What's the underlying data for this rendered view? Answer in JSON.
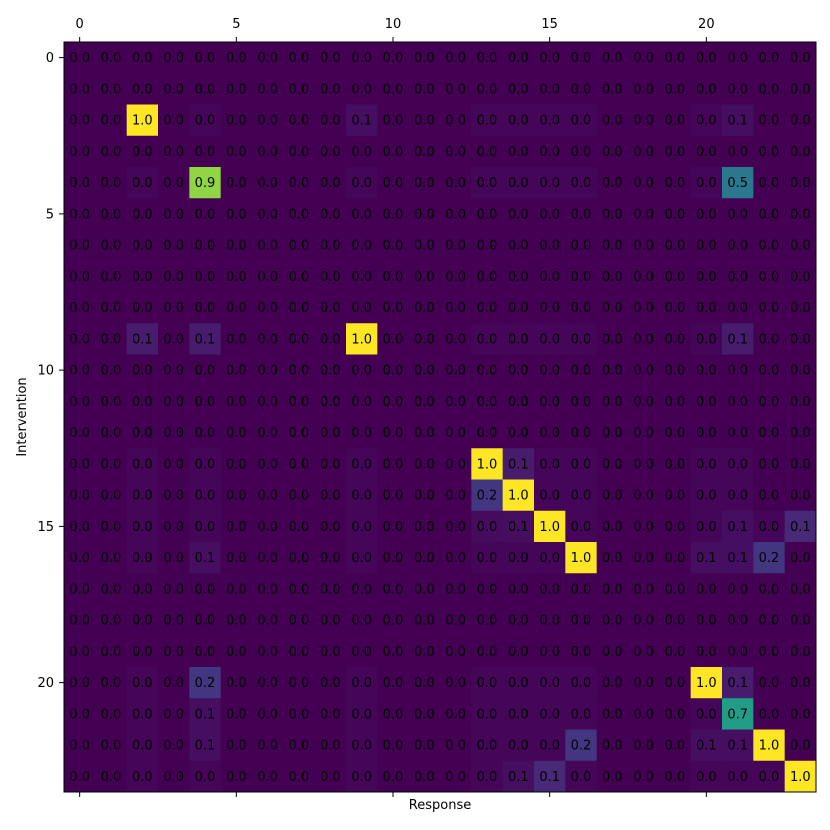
{
  "chart_data": {
    "type": "heatmap",
    "title": "",
    "xlabel": "Response",
    "ylabel": "Intervention",
    "rows": 24,
    "cols": 24,
    "x_ticks": [
      0,
      5,
      10,
      15,
      20
    ],
    "y_ticks": [
      0,
      5,
      10,
      15,
      20
    ],
    "xlim": [
      0,
      23
    ],
    "ylim": [
      0,
      23
    ],
    "colormap": "viridis",
    "value_range": [
      0,
      1
    ],
    "value_format": "%.1f",
    "values": [
      [
        0,
        0,
        0,
        0,
        0,
        0,
        0,
        0,
        0,
        0,
        0,
        0,
        0,
        0,
        0,
        0,
        0,
        0,
        0,
        0,
        0,
        0,
        0,
        0
      ],
      [
        0,
        0,
        0,
        0,
        0,
        0,
        0,
        0,
        0,
        0,
        0,
        0,
        0,
        0,
        0,
        0,
        0,
        0,
        0,
        0,
        0,
        0,
        0,
        0
      ],
      [
        0,
        0,
        1.0,
        0,
        0.02,
        0,
        0,
        0,
        0,
        0.05,
        0,
        0,
        0,
        0.02,
        0.02,
        0.02,
        0.02,
        0,
        0,
        0,
        0.02,
        0.05,
        0,
        0
      ],
      [
        0,
        0,
        0,
        0,
        0,
        0,
        0,
        0,
        0,
        0,
        0,
        0,
        0,
        0,
        0,
        0,
        0,
        0,
        0,
        0,
        0,
        0,
        0,
        0
      ],
      [
        0,
        0,
        0.02,
        0,
        0.9,
        0,
        0,
        0,
        0,
        0.02,
        0,
        0,
        0,
        0.02,
        0.02,
        0.02,
        0.02,
        0,
        0,
        0,
        0.02,
        0.5,
        0,
        0
      ],
      [
        0,
        0,
        0,
        0,
        0,
        0,
        0,
        0,
        0,
        0,
        0,
        0,
        0,
        0,
        0,
        0,
        0,
        0,
        0,
        0,
        0,
        0,
        0,
        0
      ],
      [
        0,
        0,
        0,
        0,
        0,
        0,
        0,
        0,
        0,
        0,
        0,
        0,
        0,
        0,
        0,
        0,
        0,
        0,
        0,
        0,
        0,
        0,
        0,
        0
      ],
      [
        0,
        0,
        0,
        0,
        0,
        0,
        0,
        0,
        0,
        0,
        0,
        0,
        0,
        0,
        0,
        0,
        0,
        0,
        0,
        0,
        0,
        0,
        0,
        0
      ],
      [
        0,
        0,
        0,
        0,
        0,
        0,
        0,
        0,
        0,
        0,
        0,
        0,
        0,
        0,
        0,
        0,
        0,
        0,
        0,
        0,
        0,
        0,
        0,
        0
      ],
      [
        0,
        0,
        0.1,
        0,
        0.1,
        0,
        0,
        0,
        0,
        1.0,
        0,
        0,
        0,
        0.02,
        0.02,
        0.02,
        0.02,
        0,
        0,
        0,
        0.02,
        0.1,
        0,
        0
      ],
      [
        0,
        0,
        0,
        0,
        0,
        0,
        0,
        0,
        0,
        0,
        0,
        0,
        0,
        0,
        0,
        0,
        0,
        0,
        0,
        0,
        0,
        0,
        0,
        0
      ],
      [
        0,
        0,
        0,
        0,
        0,
        0,
        0,
        0,
        0,
        0,
        0,
        0,
        0,
        0,
        0,
        0,
        0,
        0,
        0,
        0,
        0,
        0,
        0,
        0
      ],
      [
        0,
        0,
        0,
        0,
        0,
        0,
        0,
        0,
        0,
        0,
        0,
        0,
        0,
        0,
        0,
        0,
        0,
        0,
        0,
        0,
        0,
        0,
        0,
        0
      ],
      [
        0,
        0,
        0.02,
        0,
        0.02,
        0,
        0,
        0,
        0,
        0.02,
        0,
        0,
        0,
        1.0,
        0.1,
        0.02,
        0.02,
        0,
        0,
        0,
        0.02,
        0.02,
        0,
        0
      ],
      [
        0,
        0,
        0.02,
        0,
        0.02,
        0,
        0,
        0,
        0,
        0.02,
        0,
        0,
        0,
        0.2,
        1.0,
        0.02,
        0.02,
        0,
        0,
        0,
        0.02,
        0.02,
        0,
        0
      ],
      [
        0,
        0,
        0.02,
        0,
        0.02,
        0,
        0,
        0,
        0,
        0.02,
        0,
        0,
        0,
        0.04,
        0.05,
        1.0,
        0.02,
        0,
        0,
        0,
        0.02,
        0.05,
        0.02,
        0.15
      ],
      [
        0,
        0,
        0.02,
        0,
        0.05,
        0,
        0,
        0,
        0,
        0.02,
        0,
        0,
        0,
        0.02,
        0.02,
        0.02,
        1.0,
        0,
        0,
        0,
        0.05,
        0.05,
        0.2,
        0
      ],
      [
        0,
        0,
        0,
        0,
        0,
        0,
        0,
        0,
        0,
        0,
        0,
        0,
        0,
        0,
        0,
        0,
        0,
        0,
        0,
        0,
        0,
        0,
        0,
        0
      ],
      [
        0,
        0,
        0,
        0,
        0,
        0,
        0,
        0,
        0,
        0,
        0,
        0,
        0,
        0,
        0,
        0,
        0,
        0,
        0,
        0,
        0,
        0,
        0,
        0
      ],
      [
        0,
        0,
        0,
        0,
        0,
        0,
        0,
        0,
        0,
        0,
        0,
        0,
        0,
        0,
        0,
        0,
        0,
        0,
        0,
        0,
        0,
        0,
        0,
        0
      ],
      [
        0,
        0,
        0.02,
        0,
        0.2,
        0,
        0,
        0,
        0,
        0.02,
        0,
        0,
        0,
        0.02,
        0.02,
        0.02,
        0.02,
        0,
        0,
        0,
        1.0,
        0.1,
        0,
        0
      ],
      [
        0,
        0,
        0.02,
        0,
        0.05,
        0,
        0,
        0,
        0,
        0.02,
        0,
        0,
        0,
        0.02,
        0.02,
        0.02,
        0.02,
        0,
        0,
        0,
        0.02,
        0.7,
        0,
        0
      ],
      [
        0,
        0,
        0.02,
        0,
        0.05,
        0,
        0,
        0,
        0,
        0.02,
        0,
        0,
        0,
        0.02,
        0.02,
        0.02,
        0.2,
        0,
        0,
        0,
        0.05,
        0.05,
        1.0,
        0
      ],
      [
        0,
        0,
        0.02,
        0,
        0.02,
        0,
        0,
        0,
        0,
        0.02,
        0,
        0,
        0,
        0.02,
        0.05,
        0.15,
        0.02,
        0,
        0,
        0,
        0.02,
        0.02,
        0.02,
        1.0
      ]
    ]
  }
}
